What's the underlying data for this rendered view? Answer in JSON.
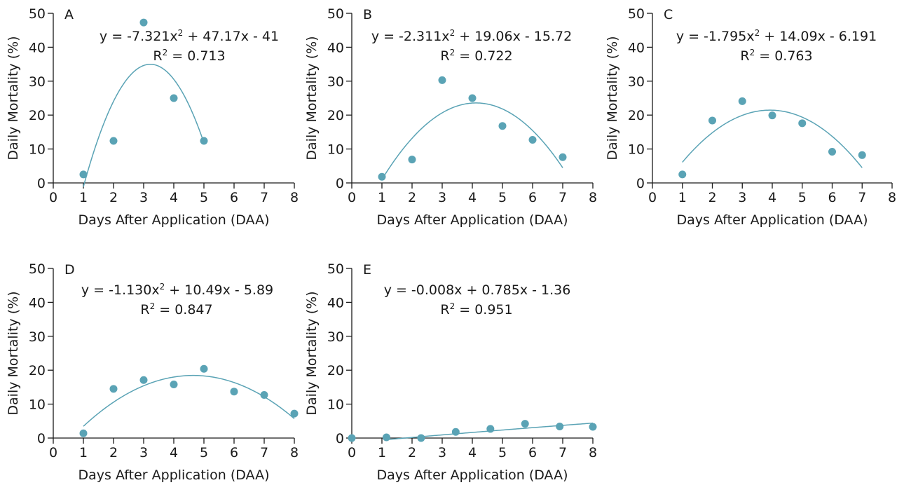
{
  "chart_data": [
    {
      "type": "scatter",
      "panel": "A",
      "xlabel": "Days After Application (DAA)",
      "ylabel": "Daily Mortality (%)",
      "xlim": [
        0,
        8
      ],
      "ylim": [
        0,
        50
      ],
      "xticks": [
        "0",
        "1",
        "2",
        "3",
        "4",
        "5",
        "6",
        "7",
        "8"
      ],
      "yticks": [
        "0",
        "10",
        "20",
        "30",
        "40",
        "50"
      ],
      "equation": "y = -7.321x² + 47.17x - 41",
      "r2": "R² = 0.713",
      "x": [
        1,
        2,
        3,
        4,
        5
      ],
      "y": [
        2.5,
        12.4,
        47.3,
        25,
        12.4
      ],
      "fit": {
        "a": -7.321,
        "b": 47.17,
        "c": -41,
        "x_range": [
          1,
          5
        ]
      },
      "color": "#5aa3b5"
    },
    {
      "type": "scatter",
      "panel": "B",
      "xlabel": "Days After Application (DAA)",
      "ylabel": "Daily Mortality (%)",
      "xlim": [
        0,
        8
      ],
      "ylim": [
        0,
        50
      ],
      "xticks": [
        "0",
        "1",
        "2",
        "3",
        "4",
        "5",
        "6",
        "7",
        "8"
      ],
      "yticks": [
        "0",
        "10",
        "20",
        "30",
        "40",
        "50"
      ],
      "equation": "y = -2.311x² + 19.06x - 15.72",
      "r2": "R² = 0.722",
      "x": [
        1,
        2,
        3,
        4,
        5,
        6,
        7
      ],
      "y": [
        1.8,
        6.9,
        30.3,
        25,
        16.8,
        12.7,
        7.6
      ],
      "fit": {
        "a": -2.311,
        "b": 19.06,
        "c": -15.72,
        "x_range": [
          1,
          7
        ]
      },
      "color": "#5aa3b5"
    },
    {
      "type": "scatter",
      "panel": "C",
      "xlabel": "Days After Application (DAA)",
      "ylabel": "Daily Mortality (%)",
      "xlim": [
        0,
        8
      ],
      "ylim": [
        0,
        50
      ],
      "xticks": [
        "0",
        "1",
        "2",
        "3",
        "4",
        "5",
        "6",
        "7",
        "8"
      ],
      "yticks": [
        "0",
        "10",
        "20",
        "30",
        "40",
        "50"
      ],
      "equation": "y = -1.795x² + 14.09x - 6.191",
      "r2": "R² = 0.763",
      "x": [
        1,
        2,
        3,
        4,
        5,
        6,
        7
      ],
      "y": [
        2.5,
        18.4,
        24.1,
        19.9,
        17.6,
        9.2,
        8.2
      ],
      "fit": {
        "a": -1.795,
        "b": 14.09,
        "c": -6.191,
        "x_range": [
          1,
          7
        ]
      },
      "color": "#5aa3b5"
    },
    {
      "type": "scatter",
      "panel": "D",
      "xlabel": "Days After Application (DAA)",
      "ylabel": "Daily Mortality (%)",
      "xlim": [
        0,
        8
      ],
      "ylim": [
        0,
        50
      ],
      "xticks": [
        "0",
        "1",
        "2",
        "3",
        "4",
        "5",
        "6",
        "7",
        "8"
      ],
      "yticks": [
        "0",
        "10",
        "20",
        "30",
        "40",
        "50"
      ],
      "equation": "y = -1.130x² + 10.49x - 5.89",
      "r2": "R² = 0.847",
      "x": [
        1,
        2,
        3,
        4,
        5,
        6,
        7,
        8
      ],
      "y": [
        1.4,
        14.5,
        17.1,
        15.8,
        20.4,
        13.7,
        12.7,
        7.2
      ],
      "fit": {
        "a": -1.13,
        "b": 10.49,
        "c": -5.89,
        "x_range": [
          1,
          8
        ]
      },
      "color": "#5aa3b5"
    },
    {
      "type": "scatter",
      "panel": "E",
      "xlabel": "Days After Application (DAA)",
      "ylabel": "Daily Mortality (%)",
      "xlim": [
        0,
        8
      ],
      "ylim": [
        0,
        50
      ],
      "xticks": [
        "0",
        "1",
        "2",
        "3",
        "4",
        "5",
        "6",
        "7",
        "8"
      ],
      "yticks": [
        "0",
        "10",
        "20",
        "30",
        "40",
        "50"
      ],
      "equation": "y = -0.008x + 0.785x - 1.36",
      "r2": "R² = 0.951",
      "x": [
        0,
        1.15,
        2.3,
        3.45,
        4.6,
        5.75,
        6.9,
        8
      ],
      "y": [
        0,
        0.2,
        0,
        1.8,
        2.7,
        4.2,
        3.4,
        3.3
      ],
      "fit": {
        "a": -0.008,
        "b": 0.785,
        "c": -1.36,
        "x_range": [
          1.15,
          8
        ]
      },
      "color": "#5aa3b5"
    }
  ]
}
